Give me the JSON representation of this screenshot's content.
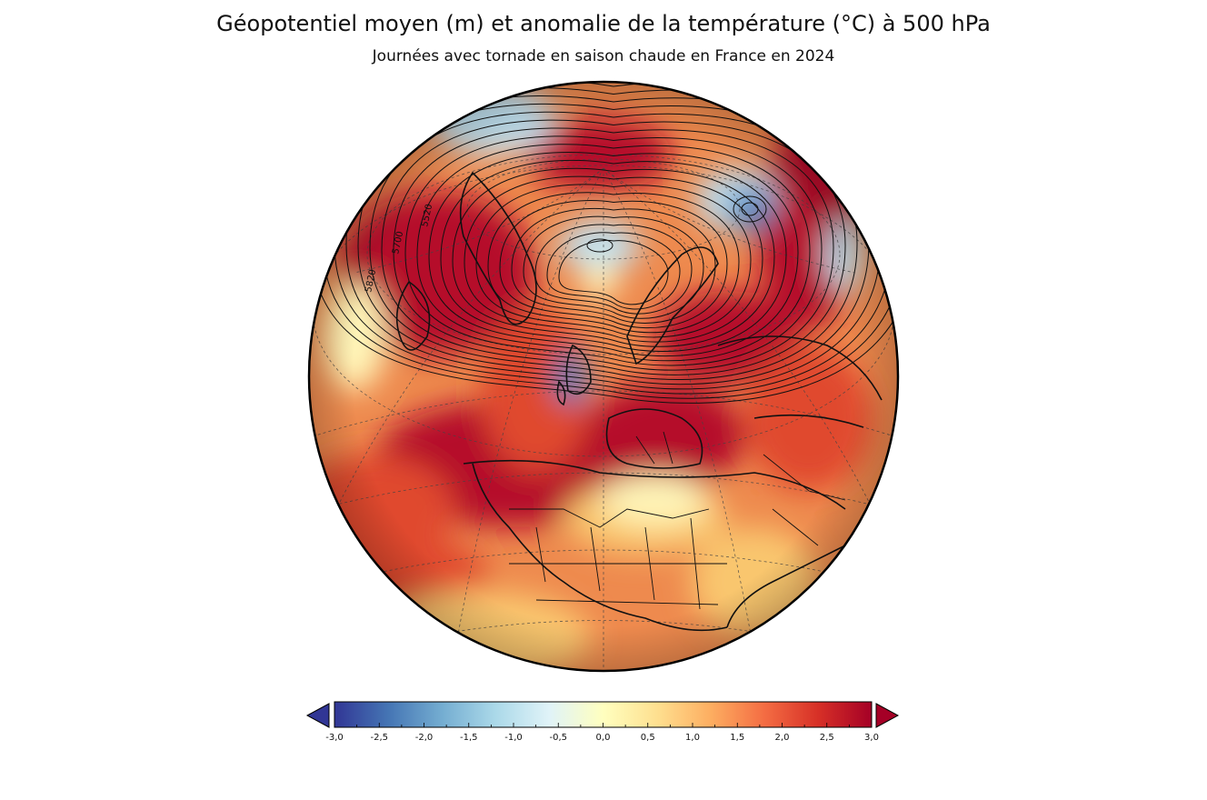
{
  "header": {
    "title": "Géopotentiel moyen (m) et anomalie de la température (°C) à 500 hPa",
    "subtitle": "Journées avec tornade en saison chaude en France en 2024"
  },
  "map": {
    "contour_labels": [
      "5520",
      "5700",
      "5820"
    ],
    "colors": {
      "ocean_base": "#ee8a4e",
      "warm_dark": "#b5102a",
      "warm": "#e04a2e",
      "mild": "#f9c66e",
      "neutral": "#fff5b8",
      "cool": "#bfe0ef",
      "cold": "#4a83c0"
    }
  },
  "colorbar": {
    "ticks": [
      "-3,0",
      "-2,5",
      "-2,0",
      "-1,5",
      "-1,0",
      "-0,5",
      "0,0",
      "0,5",
      "1,0",
      "1,5",
      "2,0",
      "2,5",
      "3,0"
    ],
    "stops": [
      "#313695",
      "#4575b4",
      "#74add1",
      "#abd9e9",
      "#e0f3f8",
      "#ffffbf",
      "#fee090",
      "#fdae61",
      "#f46d43",
      "#d73027",
      "#a50026"
    ],
    "under_color": "#313695",
    "over_color": "#a50026"
  }
}
